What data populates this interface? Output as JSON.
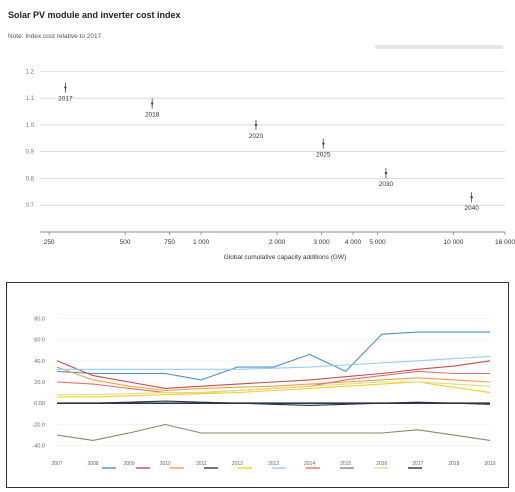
{
  "header": {
    "title": "Solar PV module and inverter cost index",
    "subtitle": "Note: Index cost relative to 2017"
  },
  "colors": {
    "guide": "#c8c8c8",
    "axis": "#666666",
    "point": "#444444",
    "bottom_series": [
      "#4a90d0",
      "#c0504d",
      "#f0a040",
      "#2a3a5a",
      "#f5d020",
      "#99ccee",
      "#e07070",
      "#8a8a6a",
      "#dddd88",
      "#333333"
    ]
  },
  "chart_data": [
    {
      "type": "scatter",
      "title": "Solar PV module and inverter cost index",
      "subtitle": "Note: Index cost relative to 2017",
      "xlabel": "Global cumulative capacity additions (GW)",
      "ylabel": "",
      "xscale": "log",
      "xlim": [
        230,
        16000
      ],
      "x_ticks": [
        {
          "value": 250,
          "label": "250"
        },
        {
          "value": 500,
          "label": "500"
        },
        {
          "value": 750,
          "label": "750"
        },
        {
          "value": 1000,
          "label": "1 000"
        },
        {
          "value": 2000,
          "label": "2 000"
        },
        {
          "value": 3000,
          "label": "3 000"
        },
        {
          "value": 4000,
          "label": "4 000"
        },
        {
          "value": 5000,
          "label": "5 000"
        },
        {
          "value": 10000,
          "label": "10 000"
        },
        {
          "value": 16000,
          "label": "16 000"
        }
      ],
      "ylim": [
        0.6,
        1.25
      ],
      "y_ticks": [
        {
          "value": 1.2,
          "label": "1.2"
        },
        {
          "value": 1.1,
          "label": "1.1"
        },
        {
          "value": 1.0,
          "label": "1.0"
        },
        {
          "value": 0.9,
          "label": "0.9"
        },
        {
          "value": 0.8,
          "label": "0.8"
        },
        {
          "value": 0.7,
          "label": "0.7"
        }
      ],
      "points": [
        {
          "x": 290,
          "y": 1.14,
          "label": "2017"
        },
        {
          "x": 640,
          "y": 1.08,
          "label": "2018"
        },
        {
          "x": 1650,
          "y": 1.0,
          "label": "2020"
        },
        {
          "x": 3050,
          "y": 0.93,
          "label": "2025"
        },
        {
          "x": 5400,
          "y": 0.82,
          "label": "2030"
        },
        {
          "x": 11800,
          "y": 0.73,
          "label": "2040"
        }
      ]
    },
    {
      "type": "line",
      "y_ticks": [
        "80.0",
        "60.0",
        "40.0",
        "20.0",
        "0.00",
        "-20.0",
        "-40.0"
      ],
      "ylim": [
        -45,
        85
      ],
      "categories": [
        "2007",
        "2008",
        "2009",
        "2010",
        "2011",
        "2012",
        "2013",
        "2014",
        "2015",
        "2016",
        "2017",
        "2018",
        "2019"
      ],
      "series": [
        {
          "name": "",
          "values": [
            30,
            28,
            28,
            28,
            22,
            34,
            34,
            46,
            30,
            65,
            67,
            67,
            67
          ]
        },
        {
          "name": "",
          "values": [
            40,
            26,
            20,
            14,
            16,
            18,
            20,
            22,
            25,
            28,
            32,
            35,
            40
          ]
        },
        {
          "name": "",
          "values": [
            34,
            22,
            16,
            12,
            14,
            15,
            16,
            18,
            20,
            22,
            24,
            22,
            20
          ]
        },
        {
          "name": "",
          "values": [
            0,
            0,
            0,
            0,
            0,
            0,
            0,
            0,
            0,
            0,
            0,
            0,
            0
          ]
        },
        {
          "name": "",
          "values": [
            6,
            6,
            7,
            8,
            9,
            10,
            12,
            14,
            16,
            18,
            20,
            15,
            10
          ]
        },
        {
          "name": "",
          "values": [
            32,
            32,
            32,
            32,
            32,
            32,
            33,
            34,
            36,
            38,
            40,
            42,
            44
          ]
        },
        {
          "name": "",
          "values": [
            20,
            18,
            14,
            10,
            10,
            12,
            14,
            16,
            22,
            26,
            30,
            28,
            28
          ]
        },
        {
          "name": "",
          "values": [
            -30,
            -35,
            -28,
            -20,
            -28,
            -28,
            -28,
            -28,
            -28,
            -28,
            -25,
            -30,
            -35
          ]
        },
        {
          "name": "",
          "values": [
            8,
            8,
            9,
            10,
            10,
            12,
            14,
            16,
            18,
            20,
            20,
            18,
            16
          ]
        },
        {
          "name": "",
          "values": [
            0,
            0,
            1,
            2,
            1,
            0,
            -1,
            -2,
            -1,
            0,
            1,
            0,
            -1
          ]
        }
      ]
    }
  ]
}
